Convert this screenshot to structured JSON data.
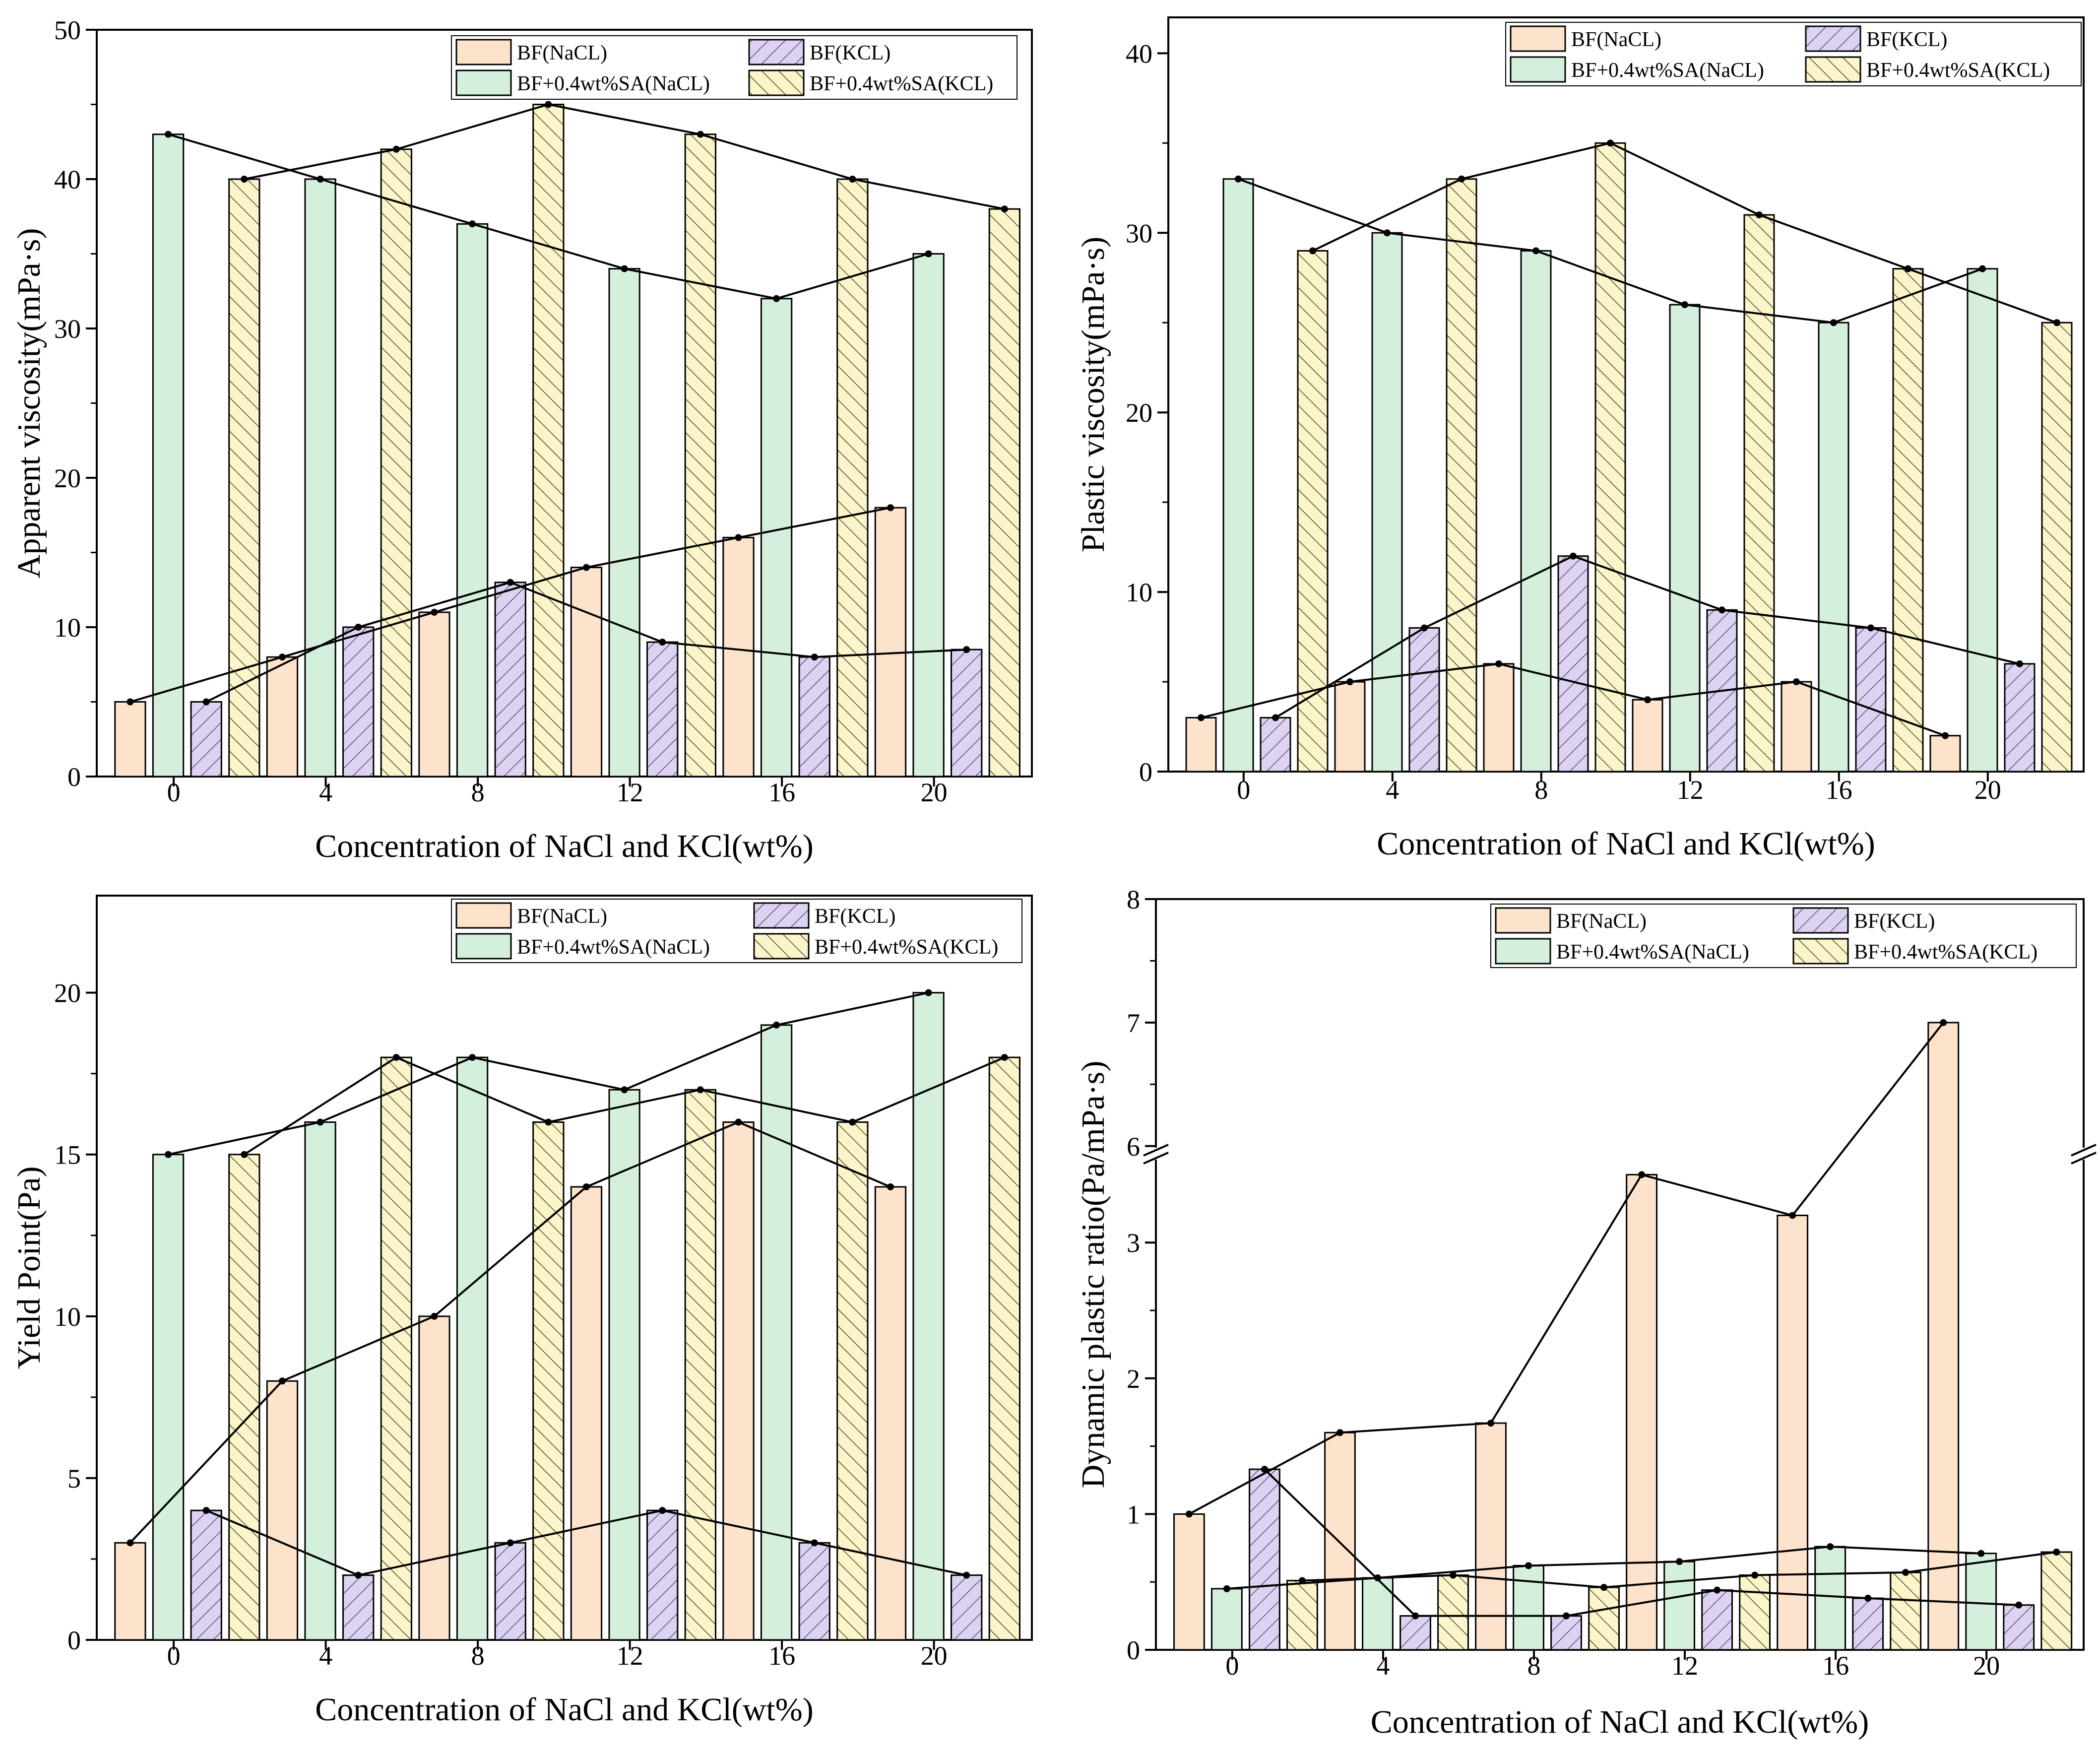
{
  "chart_data": [
    {
      "type": "bar",
      "title": "",
      "xlabel": "Concentration of NaCl and KCl(wt%)",
      "ylabel": "Apparent viscosity(mPa·s)",
      "categories": [
        "0",
        "4",
        "8",
        "12",
        "16",
        "20"
      ],
      "ylim": [
        0,
        50
      ],
      "yticks": [
        "0",
        "10",
        "20",
        "30",
        "40",
        "50"
      ],
      "legend_position": "top-right",
      "series": [
        {
          "name": "BF(NaCL)",
          "values": [
            5,
            8,
            11,
            14,
            16,
            18
          ]
        },
        {
          "name": "BF+0.4wt%SA(NaCL)",
          "values": [
            43,
            40,
            37,
            34,
            32,
            35
          ]
        },
        {
          "name": "BF(KCL)",
          "values": [
            5,
            10,
            13,
            9,
            8,
            8.5
          ]
        },
        {
          "name": "BF+0.4wt%SA(KCL)",
          "values": [
            40,
            42,
            45,
            43,
            40,
            38
          ]
        }
      ]
    },
    {
      "type": "bar",
      "title": "",
      "xlabel": "Concentration of NaCl and KCl(wt%)",
      "ylabel": "Plastic viscosity(mPa·s)",
      "categories": [
        "0",
        "4",
        "8",
        "12",
        "16",
        "20"
      ],
      "ylim": [
        0,
        42
      ],
      "yticks": [
        "0",
        "10",
        "20",
        "30",
        "40"
      ],
      "legend_position": "top-right",
      "series": [
        {
          "name": "BF(NaCL)",
          "values": [
            3,
            5,
            6,
            4,
            5,
            2
          ]
        },
        {
          "name": "BF+0.4wt%SA(NaCL)",
          "values": [
            33,
            30,
            29,
            26,
            25,
            28
          ]
        },
        {
          "name": "BF(KCL)",
          "values": [
            3,
            8,
            12,
            9,
            8,
            6
          ]
        },
        {
          "name": "BF+0.4wt%SA(KCL)",
          "values": [
            29,
            33,
            35,
            31,
            28,
            25
          ]
        }
      ]
    },
    {
      "type": "bar",
      "title": "",
      "xlabel": "Concentration of NaCl and KCl(wt%)",
      "ylabel": "Yield Point(Pa)",
      "categories": [
        "0",
        "4",
        "8",
        "12",
        "16",
        "20"
      ],
      "ylim": [
        0,
        23
      ],
      "yticks": [
        "0",
        "5",
        "10",
        "15",
        "20"
      ],
      "legend_position": "top-right",
      "series": [
        {
          "name": "BF(NaCL)",
          "values": [
            3,
            8,
            10,
            14,
            16,
            14
          ]
        },
        {
          "name": "BF+0.4wt%SA(NaCL)",
          "values": [
            15,
            16,
            18,
            17,
            19,
            20
          ]
        },
        {
          "name": "BF(KCL)",
          "values": [
            4,
            2,
            3,
            4,
            3,
            2
          ]
        },
        {
          "name": "BF+0.4wt%SA(KCL)",
          "values": [
            15,
            18,
            16,
            17,
            16,
            18
          ]
        }
      ]
    },
    {
      "type": "bar",
      "title": "",
      "xlabel": "Concentration of NaCl and KCl(wt%)",
      "ylabel": "Dynamic plastic ratio(Pa/mPa·s)",
      "categories": [
        "0",
        "4",
        "8",
        "12",
        "16",
        "20"
      ],
      "ylim": [
        0,
        8
      ],
      "axis_break": [
        3.6,
        6
      ],
      "yticks": [
        "0",
        "1",
        "2",
        "3",
        "6",
        "7",
        "8"
      ],
      "legend_position": "top-right",
      "series": [
        {
          "name": "BF(NaCL)",
          "values": [
            1,
            1.6,
            1.67,
            3.5,
            3.2,
            7
          ]
        },
        {
          "name": "BF+0.4wt%SA(NaCL)",
          "values": [
            0.45,
            0.53,
            0.62,
            0.65,
            0.76,
            0.71
          ]
        },
        {
          "name": "BF(KCL)",
          "values": [
            1.33,
            0.25,
            0.25,
            0.44,
            0.38,
            0.33
          ]
        },
        {
          "name": "BF+0.4wt%SA(KCL)",
          "values": [
            0.51,
            0.55,
            0.46,
            0.55,
            0.57,
            0.72
          ]
        }
      ]
    }
  ]
}
